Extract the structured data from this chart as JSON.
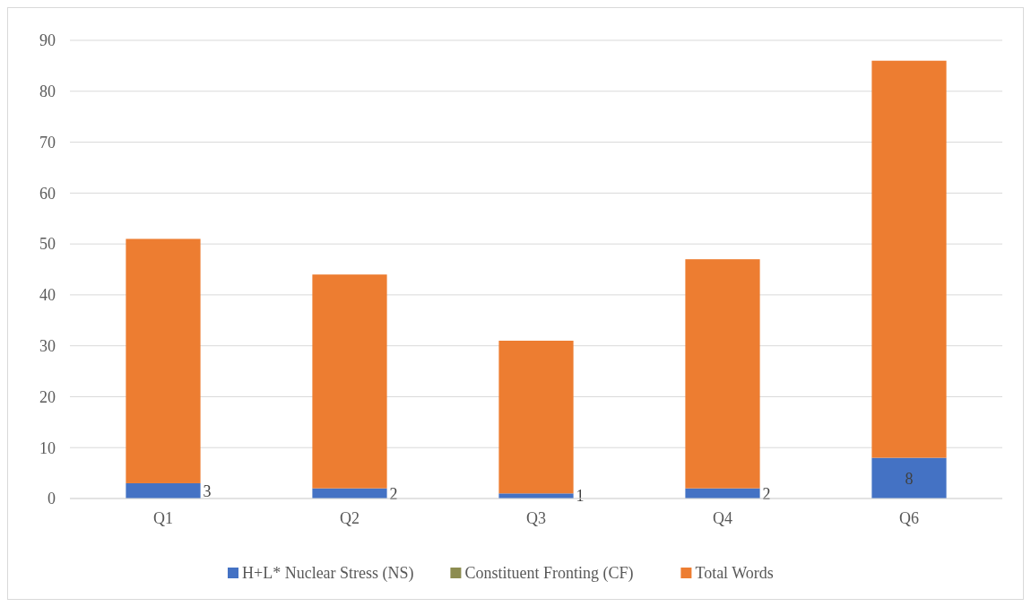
{
  "chart_data": {
    "type": "bar",
    "stacked": true,
    "categories": [
      "Q1",
      "Q2",
      "Q3",
      "Q4",
      "Q6"
    ],
    "series": [
      {
        "name": "H+L* Nuclear Stress (NS)",
        "color": "#4472c4",
        "values": [
          3,
          2,
          1,
          2,
          8
        ],
        "value_labels": [
          "3",
          "2",
          "1",
          "2",
          "8"
        ]
      },
      {
        "name": "Constituent Fronting (CF)",
        "color": "#8c8c50",
        "values": [
          0,
          0,
          0,
          0,
          0
        ]
      },
      {
        "name": "Total Words",
        "color": "#ed7d31",
        "values": [
          48,
          42,
          30,
          45,
          78
        ]
      }
    ],
    "ylim": [
      0,
      90
    ],
    "yticks": [
      0,
      10,
      20,
      30,
      40,
      50,
      60,
      70,
      80,
      90
    ],
    "grid": "y",
    "legend": "bottom"
  }
}
